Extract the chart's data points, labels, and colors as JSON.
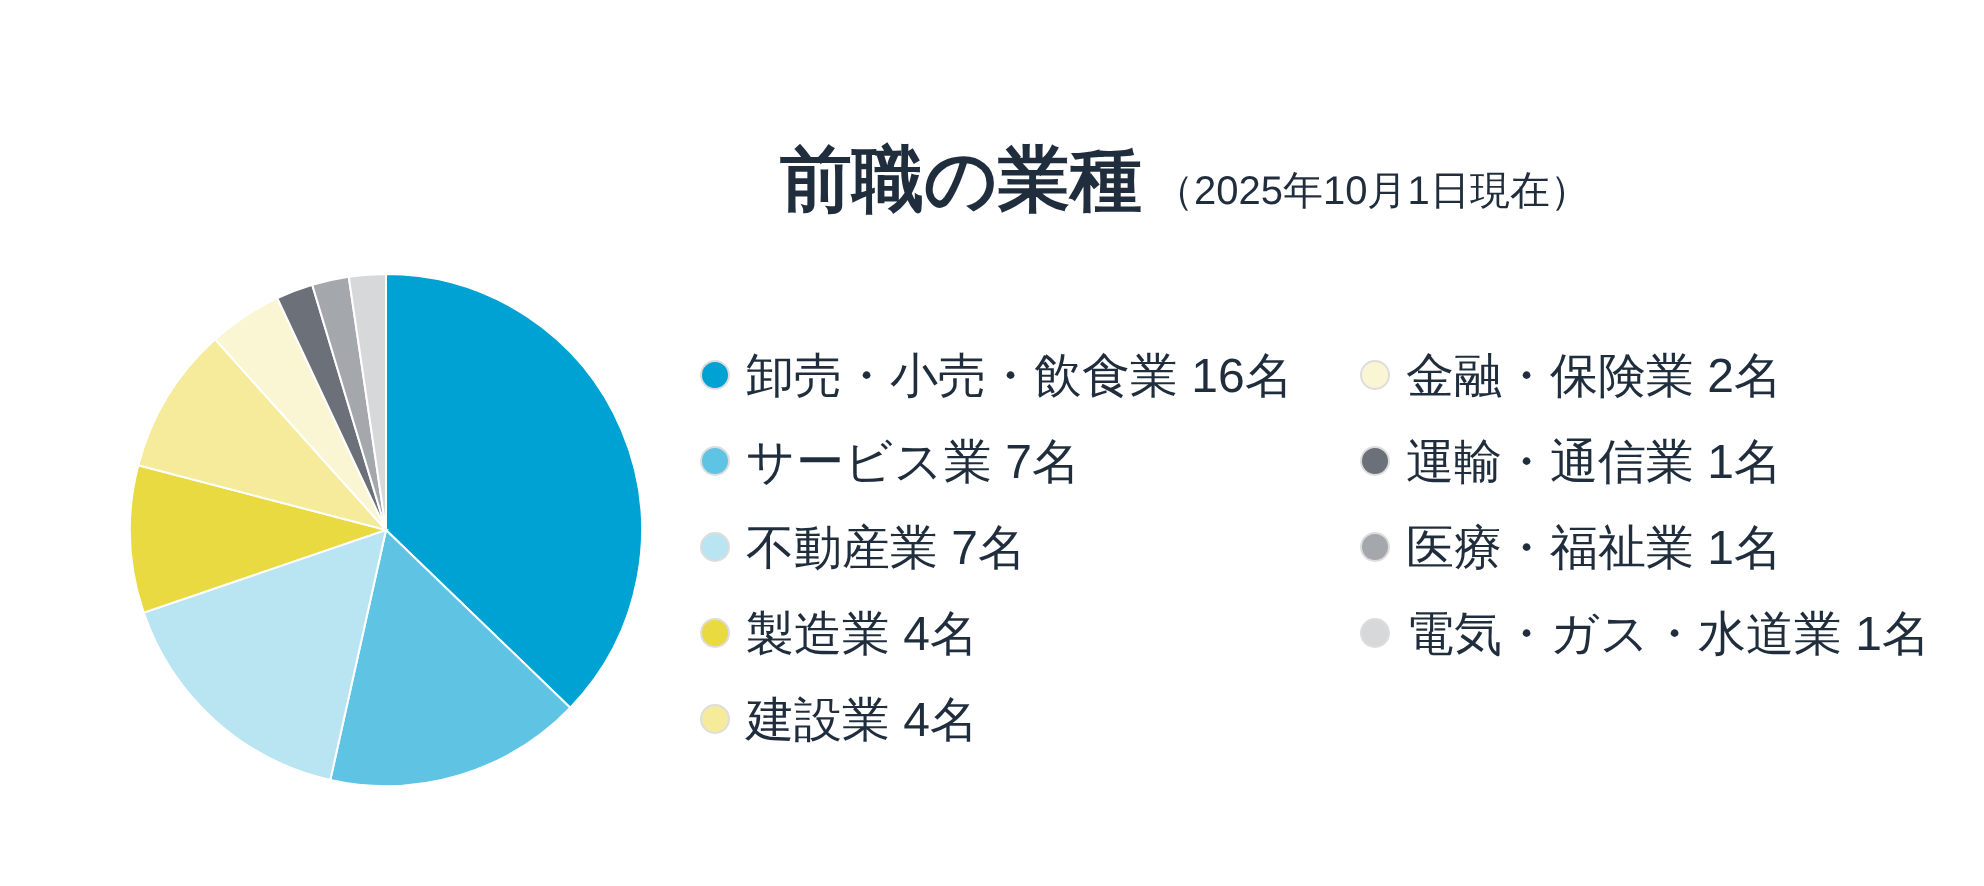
{
  "chart_data": {
    "type": "pie",
    "title": "前職の業種",
    "subtitle": "（2025年10月1日現在）",
    "categories": [
      "卸売・小売・飲食業",
      "サービス業",
      "不動産業",
      "製造業",
      "建設業",
      "金融・保険業",
      "運輸・通信業",
      "医療・福祉業",
      "電気・ガス・水道業"
    ],
    "values": [
      16,
      7,
      7,
      4,
      4,
      2,
      1,
      1,
      1
    ],
    "value_labels": [
      "16名",
      "7名",
      "7名",
      "4名",
      "4名",
      "2名",
      "1名",
      "1名",
      "1名"
    ],
    "colors": [
      "#00a2d3",
      "#5fc4e4",
      "#b9e4f2",
      "#e9da41",
      "#f5eb9b",
      "#faf6d3",
      "#6b7079",
      "#a4a7ac",
      "#d7d8da"
    ],
    "legend": "right"
  }
}
